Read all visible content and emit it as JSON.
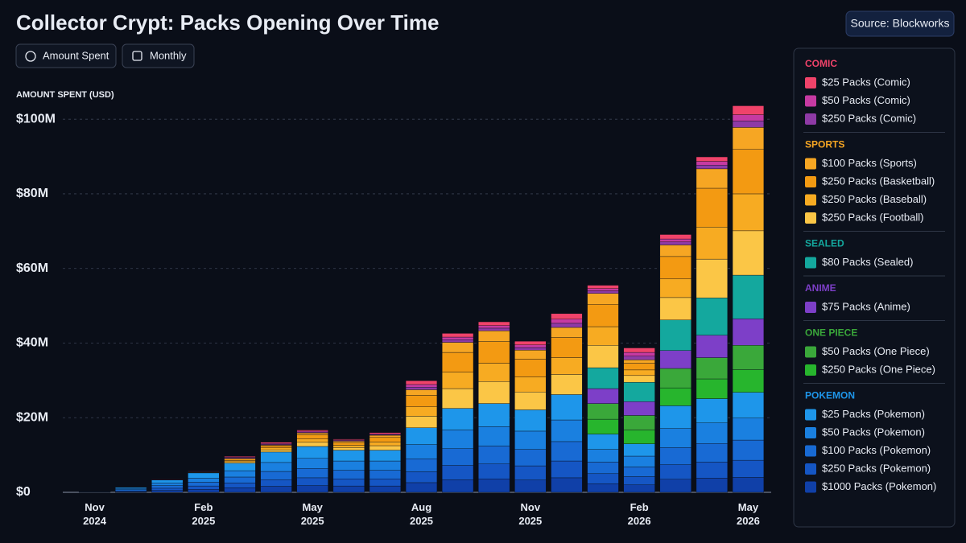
{
  "chart_data": {
    "type": "stacked_bar",
    "title": "Collector Crypt: Packs Opening Over Time",
    "source": "Source: Blockworks",
    "controls": [
      "Amount Spent",
      "Monthly"
    ],
    "y_label": "AMOUNT SPENT (USD)",
    "categories": [
      "Nov\n2024",
      null,
      null,
      "Feb\n2025",
      null,
      null,
      "May\n2025",
      null,
      null,
      "Aug\n2025",
      null,
      null,
      "Nov\n2025",
      null,
      null,
      "Feb\n2026",
      null,
      null,
      "May\n2026"
    ],
    "ylim": [
      0,
      105
    ],
    "yticks": [
      {
        "value": 0,
        "label": "$0"
      },
      {
        "value": 20,
        "label": "$20M"
      },
      {
        "value": 40,
        "label": "$40M"
      },
      {
        "value": 60,
        "label": "$60M"
      },
      {
        "value": 80,
        "label": "$80M"
      },
      {
        "value": 100,
        "label": "$100M"
      }
    ],
    "grid": true,
    "legend": "right",
    "series": [
      {
        "group": "COMIC",
        "name": "$25 Packs (Comic)",
        "color": "#f0436a",
        "values": [
          0,
          0,
          0.1,
          0.1,
          0.2,
          0.3,
          0.3,
          0.2,
          0.3,
          1.0,
          1.0,
          1.0,
          1.0,
          1.5,
          0.9,
          1.2,
          1.2,
          1.2,
          2.4
        ]
      },
      {
        "group": "COMIC",
        "name": "$50 Packs (Comic)",
        "color": "#c63aa2",
        "values": [
          0,
          0,
          0.05,
          0.1,
          0.2,
          0.2,
          0.3,
          0.2,
          0.2,
          0.7,
          0.7,
          0.7,
          0.7,
          1.1,
          0.6,
          1.0,
          0.8,
          1.0,
          1.7
        ]
      },
      {
        "group": "COMIC",
        "name": "$250 Packs (Comic)",
        "color": "#8e3aa6",
        "values": [
          0,
          0,
          0.05,
          0.1,
          0.2,
          0.2,
          0.2,
          0.2,
          0.2,
          0.7,
          0.7,
          0.7,
          0.7,
          1.1,
          0.7,
          1.0,
          0.8,
          1.0,
          1.7
        ]
      },
      {
        "group": "SPORTS",
        "name": "$100 Packs (Sports)",
        "color": "#f6a623",
        "values": [
          0,
          0,
          0,
          0,
          0.2,
          0.2,
          0.5,
          0.4,
          0.6,
          1.5,
          2.7,
          2.9,
          2.4,
          2.7,
          2.9,
          0.9,
          3.1,
          5.2,
          5.9
        ]
      },
      {
        "group": "SPORTS",
        "name": "$250 Packs (Basketball)",
        "color": "#f39a12",
        "values": [
          0,
          0,
          0,
          0.1,
          0.4,
          0.6,
          1.1,
          0.7,
          1.2,
          3.1,
          5.3,
          5.8,
          4.8,
          5.4,
          6.0,
          1.8,
          6.0,
          10.4,
          11.9
        ]
      },
      {
        "group": "SPORTS",
        "name": "$250 Packs (Baseball)",
        "color": "#f7ab22",
        "values": [
          0,
          0,
          0,
          0.1,
          0.3,
          0.5,
          0.9,
          0.6,
          1.0,
          2.5,
          4.4,
          4.9,
          4.0,
          4.5,
          5.0,
          1.5,
          5.0,
          8.6,
          9.9
        ]
      },
      {
        "group": "SPORTS",
        "name": "$250 Packs (Football)",
        "color": "#fbc646",
        "values": [
          0,
          0,
          0,
          0.1,
          0.4,
          0.6,
          1.1,
          0.7,
          1.2,
          3.1,
          5.3,
          5.9,
          4.8,
          5.4,
          6.0,
          1.8,
          6.0,
          10.4,
          11.9
        ]
      },
      {
        "group": "SEALED",
        "name": "$80 Packs (Sealed)",
        "color": "#14a89e",
        "values": [
          0,
          0,
          0,
          0,
          0,
          0,
          0,
          0,
          0,
          0,
          0,
          0,
          0,
          0,
          5.6,
          5.2,
          8.2,
          10.0,
          11.7
        ]
      },
      {
        "group": "ANIME",
        "name": "$75 Packs (Anime)",
        "color": "#7d3fc8",
        "values": [
          0,
          0,
          0,
          0,
          0,
          0,
          0,
          0,
          0,
          0,
          0,
          0,
          0,
          0,
          4.0,
          3.7,
          4.8,
          6.0,
          7.1
        ]
      },
      {
        "group": "ONE PIECE",
        "name": "$50 Packs (One Piece)",
        "color": "#3aa83a",
        "values": [
          0,
          0,
          0,
          0,
          0,
          0,
          0,
          0,
          0,
          0,
          0,
          0,
          0,
          0,
          4.2,
          3.9,
          5.2,
          5.7,
          6.5
        ]
      },
      {
        "group": "ONE PIECE",
        "name": "$250 Packs (One Piece)",
        "color": "#27b52d",
        "values": [
          0,
          0,
          0,
          0,
          0,
          0,
          0,
          0,
          0,
          0,
          0,
          0,
          0,
          0,
          4.0,
          3.7,
          4.8,
          5.3,
          6.1
        ]
      },
      {
        "group": "POKEMON",
        "name": "$25 Packs (Pokemon)",
        "color": "#1e96ea",
        "values": [
          0.07,
          0.3,
          0.8,
          1.4,
          2.0,
          2.8,
          3.2,
          2.9,
          2.9,
          4.5,
          5.8,
          6.2,
          5.7,
          6.8,
          4.1,
          3.3,
          6.1,
          6.5,
          6.9
        ]
      },
      {
        "group": "POKEMON",
        "name": "$50 Packs (Pokemon)",
        "color": "#1a80e0",
        "values": [
          0.07,
          0.3,
          0.7,
          1.1,
          1.7,
          2.4,
          2.7,
          2.5,
          2.5,
          3.8,
          5.0,
          5.2,
          4.9,
          5.8,
          3.4,
          2.9,
          5.1,
          5.5,
          5.9
        ]
      },
      {
        "group": "POKEMON",
        "name": "$100 Packs (Pokemon)",
        "color": "#186ad4",
        "values": [
          0.06,
          0.3,
          0.7,
          1.0,
          1.6,
          2.2,
          2.5,
          2.3,
          2.3,
          3.5,
          4.5,
          4.8,
          4.4,
          5.2,
          3.1,
          2.6,
          4.6,
          5.0,
          5.4
        ]
      },
      {
        "group": "POKEMON",
        "name": "$250 Packs (Pokemon)",
        "color": "#1556c4",
        "values": [
          0.05,
          0.2,
          0.6,
          0.9,
          1.3,
          1.8,
          2.1,
          1.9,
          1.9,
          2.9,
          3.8,
          4.0,
          3.8,
          4.5,
          2.7,
          2.2,
          3.9,
          4.3,
          4.6
        ]
      },
      {
        "group": "POKEMON",
        "name": "$1000 Packs (Pokemon)",
        "color": "#1040a8",
        "values": [
          0.05,
          0.2,
          0.5,
          0.8,
          1.2,
          1.6,
          1.8,
          1.7,
          1.7,
          2.6,
          3.4,
          3.6,
          3.3,
          3.9,
          2.3,
          2.0,
          3.5,
          3.8,
          4.0
        ]
      }
    ]
  }
}
